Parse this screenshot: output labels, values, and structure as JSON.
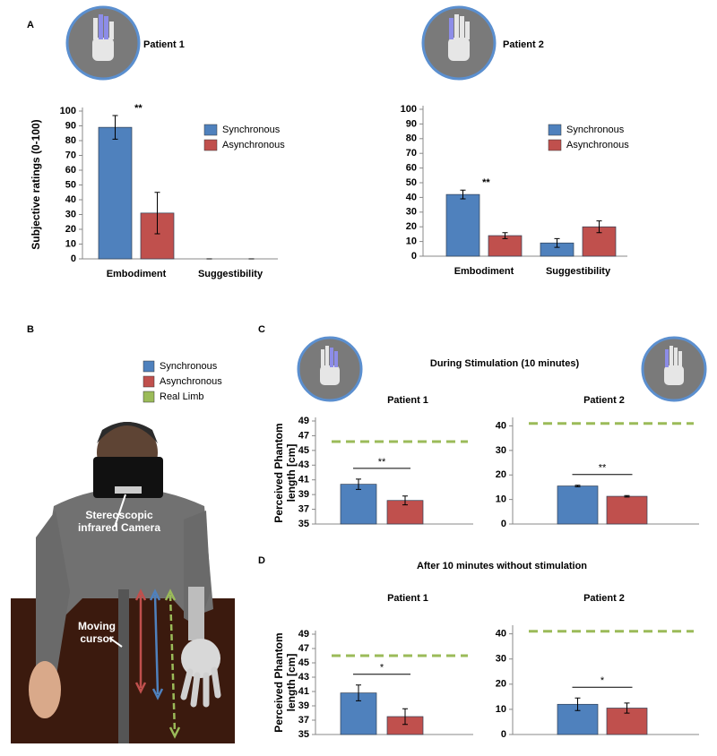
{
  "figure": {
    "panel_labels": [
      "A",
      "B",
      "C",
      "D"
    ],
    "panel_c_title": "During Stimulation (10 minutes)",
    "panel_d_title": "After 10 minutes without stimulation",
    "panel_b": {
      "legend": [
        {
          "name": "Synchronous",
          "color": "#4f81bd"
        },
        {
          "name": "Asynchronous",
          "color": "#c0504d"
        },
        {
          "name": "Real Limb",
          "color": "#9bbb59"
        }
      ],
      "camera_label": "Stereoscopic infrared Camera",
      "cursor_label": "Moving cursor"
    }
  },
  "chart_data": [
    {
      "type": "bar",
      "title": "Patient 1",
      "ylabel": "Subjective ratings (0-100)",
      "categories": [
        "Embodiment",
        "Suggestibility"
      ],
      "series": [
        {
          "name": "Synchronous",
          "color": "#4f81bd",
          "values": [
            89,
            0
          ],
          "errors": [
            8,
            0
          ]
        },
        {
          "name": "Asynchronous",
          "color": "#c0504d",
          "values": [
            31,
            0
          ],
          "errors": [
            14,
            0
          ]
        }
      ],
      "ylim": [
        0,
        100
      ],
      "yticks": [
        0,
        10,
        20,
        30,
        40,
        50,
        60,
        70,
        80,
        90,
        100
      ],
      "annotation": "**",
      "bracket": false
    },
    {
      "type": "bar",
      "title": "Patient 2",
      "categories": [
        "Embodiment",
        "Suggestibility"
      ],
      "series": [
        {
          "name": "Synchronous",
          "color": "#4f81bd",
          "values": [
            42,
            9
          ],
          "errors": [
            3,
            3
          ]
        },
        {
          "name": "Asynchronous",
          "color": "#c0504d",
          "values": [
            14,
            20
          ],
          "errors": [
            2,
            4
          ]
        }
      ],
      "ylim": [
        0,
        100
      ],
      "yticks": [
        0,
        10,
        20,
        30,
        40,
        50,
        60,
        70,
        80,
        90,
        100
      ],
      "annotation": "**",
      "bracket": false
    },
    {
      "type": "bar",
      "title": "Patient 1",
      "ylabel": "Perceived Phantom length [cm]",
      "categories": [
        null
      ],
      "series": [
        {
          "color": "#4f81bd",
          "values": [
            40.4
          ],
          "errors": [
            0.7
          ]
        },
        {
          "color": "#c0504d",
          "values": [
            38.2
          ],
          "errors": [
            0.6
          ]
        }
      ],
      "ylim": [
        35,
        49
      ],
      "yticks": [
        35,
        37,
        39,
        41,
        43,
        45,
        47,
        49
      ],
      "reference_line": {
        "value": 46.2,
        "color": "#9bbb59"
      },
      "annotation": "**",
      "bracket": true
    },
    {
      "type": "bar",
      "title": "Patient 2",
      "categories": [
        null
      ],
      "series": [
        {
          "color": "#4f81bd",
          "values": [
            15.5
          ],
          "errors": [
            0.3
          ]
        },
        {
          "color": "#c0504d",
          "values": [
            11.3
          ],
          "errors": [
            0.3
          ]
        }
      ],
      "ylim": [
        0,
        42
      ],
      "yticks": [
        0,
        10,
        20,
        30,
        40
      ],
      "reference_line": {
        "value": 41,
        "color": "#9bbb59"
      },
      "annotation": "**",
      "bracket": true
    },
    {
      "type": "bar",
      "title": "Patient 1",
      "ylabel": "Perceived Phantom length [cm]",
      "categories": [
        null
      ],
      "series": [
        {
          "color": "#4f81bd",
          "values": [
            40.8
          ],
          "errors": [
            1.1
          ]
        },
        {
          "color": "#c0504d",
          "values": [
            37.5
          ],
          "errors": [
            1.1
          ]
        }
      ],
      "ylim": [
        35,
        49
      ],
      "yticks": [
        35,
        37,
        39,
        41,
        43,
        45,
        47,
        49
      ],
      "reference_line": {
        "value": 46,
        "color": "#9bbb59"
      },
      "annotation": "*",
      "bracket": true
    },
    {
      "type": "bar",
      "title": "Patient 2",
      "categories": [
        null
      ],
      "series": [
        {
          "color": "#4f81bd",
          "values": [
            12
          ],
          "errors": [
            2.5
          ]
        },
        {
          "color": "#c0504d",
          "values": [
            10.5
          ],
          "errors": [
            2
          ]
        }
      ],
      "ylim": [
        0,
        42
      ],
      "yticks": [
        0,
        10,
        20,
        30,
        40
      ],
      "reference_line": {
        "value": 41,
        "color": "#9bbb59"
      },
      "annotation": "*",
      "bracket": true
    }
  ]
}
